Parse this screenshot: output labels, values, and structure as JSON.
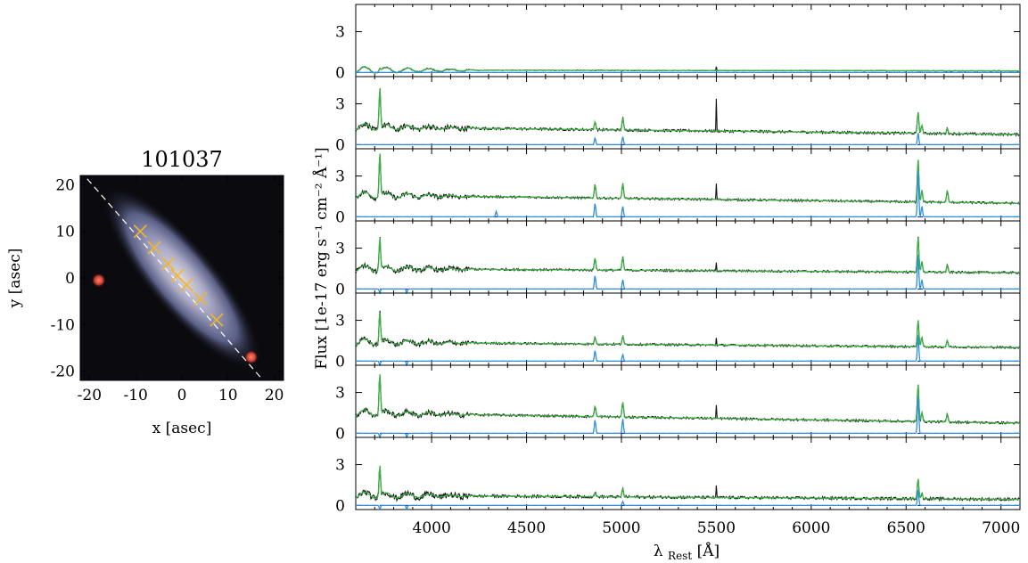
{
  "chart_data": [
    {
      "type": "image",
      "title": "101037",
      "xlabel": "x [asec]",
      "ylabel": "y [asec]",
      "xlim": [
        -22,
        22
      ],
      "ylim": [
        -22,
        22
      ],
      "xticks": [
        "-20",
        "-10",
        "0",
        "10",
        "20"
      ],
      "yticks": [
        "20",
        "10",
        "0",
        "-10",
        "-20"
      ],
      "slit_line": {
        "from": [
          -22,
          23
        ],
        "to": [
          22,
          -27
        ],
        "style": "dashed",
        "color": "#ffffff"
      },
      "markers": {
        "symbol": "x",
        "color": "#f2b52a",
        "points": [
          {
            "x": -9,
            "y": 10
          },
          {
            "x": -6,
            "y": 6.5
          },
          {
            "x": -3,
            "y": 3
          },
          {
            "x": -1,
            "y": 0.5
          },
          {
            "x": 1,
            "y": -1.5
          },
          {
            "x": 4,
            "y": -4.5
          },
          {
            "x": 7.5,
            "y": -9
          }
        ]
      },
      "red_stars": [
        {
          "x": -18,
          "y": -0.5
        },
        {
          "x": 15,
          "y": -17
        }
      ]
    },
    {
      "type": "line",
      "xlabel_main": "λ",
      "xlabel_sub": "Rest",
      "xlabel_unit": "[Å]",
      "ylabel": "Flux [1e-17 erg s⁻¹ cm⁻² Å⁻¹]",
      "xlim": [
        3600,
        7100
      ],
      "xticks": [
        "4000",
        "4500",
        "5000",
        "5500",
        "6000",
        "6500",
        "7000"
      ],
      "panel_ylim": [
        -0.3,
        5.0
      ],
      "panel_yticks": [
        "0",
        "3"
      ],
      "series_colors": {
        "observed": "#111111",
        "model": "#3bb143",
        "emission": "#2e8fe0",
        "zero": "#1a2fb5"
      },
      "emission_lines_A": [
        3727,
        3869,
        4340,
        4861,
        4959,
        5007,
        6548,
        6563,
        6583,
        6717,
        6731
      ],
      "panels": [
        {
          "continuum": [
            0.18,
            0.12
          ],
          "lines": {
            "3727": 0.2
          },
          "emission": {},
          "noise": 0.05,
          "sky": 0.3
        },
        {
          "continuum": [
            1.3,
            0.75
          ],
          "lines": {
            "3727": 3.0,
            "4861": 0.6,
            "5007": 0.9,
            "6563": 1.6,
            "6583": 0.6,
            "6717": 0.4
          },
          "emission": {
            "4861": 0.5,
            "5007": 0.6,
            "6563": 0.9
          },
          "noise": 0.18,
          "sky": 2.3
        },
        {
          "continuum": [
            1.6,
            1.0
          ],
          "lines": {
            "3727": 3.2,
            "4861": 1.0,
            "5007": 1.1,
            "6563": 3.2,
            "6583": 0.9,
            "6717": 0.9
          },
          "emission": {
            "4340": 0.4,
            "4861": 1.0,
            "5007": 0.8,
            "6563": 3.5,
            "6583": 0.8
          },
          "noise": 0.15,
          "sky": 1.2
        },
        {
          "continuum": [
            1.5,
            1.2
          ],
          "lines": {
            "3727": 2.4,
            "4861": 0.9,
            "5007": 1.0,
            "6563": 2.6,
            "6583": 0.8,
            "6717": 0.5
          },
          "emission": {
            "4861": 1.0,
            "5007": 0.7,
            "6563": 2.6,
            "6583": 0.7
          },
          "noise": 0.15,
          "sky": 0.6
        },
        {
          "continuum": [
            1.4,
            1.0
          ],
          "lines": {
            "3727": 2.3,
            "4861": 0.5,
            "5007": 0.6,
            "6563": 2.0,
            "6583": 0.7,
            "6717": 0.5
          },
          "emission": {
            "4861": 0.8,
            "5007": 0.5,
            "6563": 2.0
          },
          "noise": 0.15,
          "sky": 0.5
        },
        {
          "continuum": [
            1.5,
            0.75
          ],
          "lines": {
            "3727": 3.0,
            "4861": 0.8,
            "5007": 1.1,
            "6563": 2.8,
            "6583": 0.7,
            "6717": 0.6
          },
          "emission": {
            "4861": 1.0,
            "5007": 1.1,
            "6563": 2.8
          },
          "noise": 0.16,
          "sky": 0.9
        },
        {
          "continuum": [
            0.75,
            0.45
          ],
          "lines": {
            "3727": 2.3,
            "4861": 0.3,
            "5007": 0.6,
            "6563": 1.5,
            "6583": 0.4
          },
          "emission": {
            "5007": 0.3,
            "6563": 1.2
          },
          "noise": 0.2,
          "sky": 0.8
        }
      ]
    }
  ]
}
